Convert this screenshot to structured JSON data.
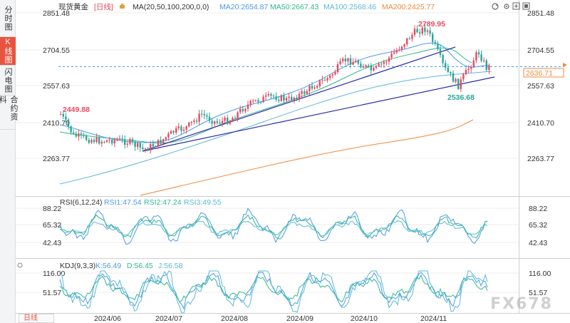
{
  "sidebar": {
    "tabs": [
      {
        "label": "分时图",
        "active": false
      },
      {
        "label": "K线图",
        "active": true
      },
      {
        "label": "闪电图",
        "active": false
      },
      {
        "label": "合约资料",
        "active": false
      }
    ]
  },
  "header": {
    "instrument": "现货黄金",
    "period": "[日线]",
    "ma_label": "MA(20,50,100,200,0,0)",
    "ma20": "MA20:2654.87",
    "ma50": "MA50:2667.43",
    "ma100": "MA100:2568.46",
    "ma200": "MA200:2425.77"
  },
  "colors": {
    "up": "#e84a5f",
    "down": "#26a69a",
    "ma20": "#4a9be8",
    "ma50": "#2fb88f",
    "ma100": "#5bb8d6",
    "ma200": "#f08a3c",
    "trendline": "#2a2aa8",
    "price_tag": "#f08a3c"
  },
  "price_axis": {
    "ticks": [
      "2851.48",
      "2704.55",
      "2557.63",
      "2410.70",
      "2263.77"
    ],
    "current_price": "2636.71"
  },
  "annotations": {
    "high": "2789.95",
    "low": "2536.68",
    "left_high": "2449.88"
  },
  "rsi": {
    "title": "RSI(6,12,24)",
    "rsi1": "RSI1:47.54",
    "rsi2": "RSI2:47.24",
    "rsi3": "RSI3:49.55",
    "ticks": [
      "88.22",
      "65.32",
      "42.43"
    ]
  },
  "kdj": {
    "title": "KDJ(9,3,3)",
    "k": "K:56.49",
    "d": "D:56.45",
    "j": "J:56.58",
    "ticks": [
      "116.00",
      "51.57"
    ]
  },
  "x_axis": {
    "labels": [
      "2024/06",
      "2024/07",
      "2024/08",
      "2024/09",
      "2024/10",
      "2024/11"
    ]
  },
  "period_tab": "日线",
  "watermark": "FX678",
  "icons": {
    "refresh": "refresh-icon",
    "settings": "gear-icon",
    "gold_icon": "gold-bar-icon",
    "zoom_in": "zoom-in-icon",
    "zoom_out": "zoom-out-icon",
    "fullscreen": "fullscreen-icon"
  }
}
